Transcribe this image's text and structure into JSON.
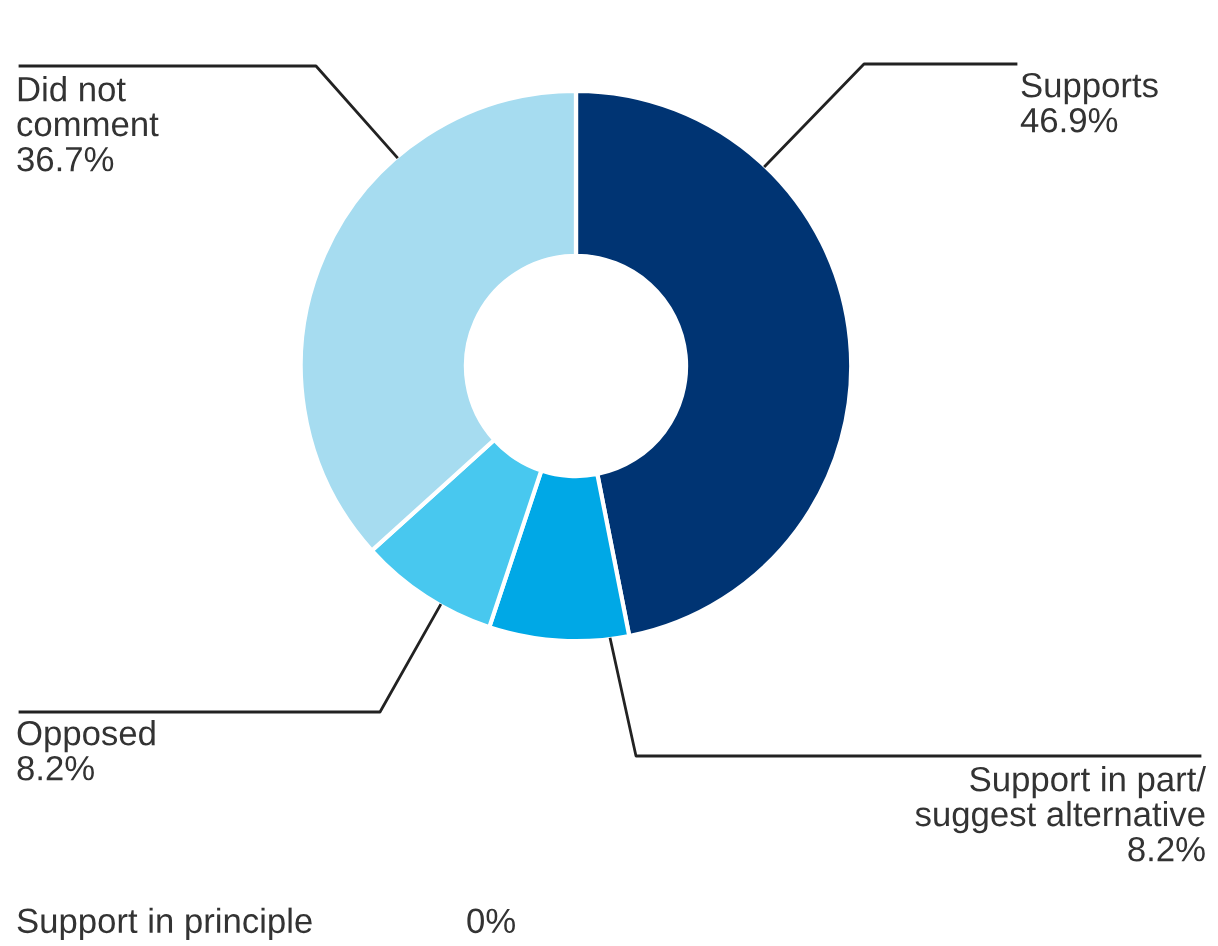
{
  "chart_data": {
    "type": "donut",
    "categories": [
      "Supports",
      "Support in part/\nsuggest alternative",
      "Opposed",
      "Did not\ncomment",
      "Support in principle"
    ],
    "values": [
      46.9,
      8.2,
      8.2,
      36.7,
      0
    ],
    "value_labels": [
      "46.9%",
      "8.2%",
      "8.2%",
      "36.7%",
      "0%"
    ],
    "colors": [
      "#003473",
      "#00a8e6",
      "#48c8ef",
      "#a6dcf0",
      "#cccccc"
    ],
    "legend": false
  }
}
